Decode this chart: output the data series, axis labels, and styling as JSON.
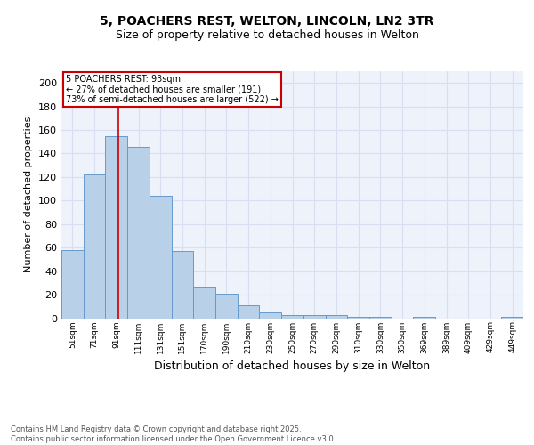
{
  "title_line1": "5, POACHERS REST, WELTON, LINCOLN, LN2 3TR",
  "title_line2": "Size of property relative to detached houses in Welton",
  "xlabel": "Distribution of detached houses by size in Welton",
  "ylabel": "Number of detached properties",
  "bar_labels": [
    "51sqm",
    "71sqm",
    "91sqm",
    "111sqm",
    "131sqm",
    "151sqm",
    "170sqm",
    "190sqm",
    "210sqm",
    "230sqm",
    "250sqm",
    "270sqm",
    "290sqm",
    "310sqm",
    "330sqm",
    "350sqm",
    "369sqm",
    "389sqm",
    "409sqm",
    "429sqm",
    "449sqm"
  ],
  "bar_values": [
    58,
    122,
    155,
    146,
    104,
    57,
    26,
    21,
    11,
    5,
    3,
    3,
    3,
    1,
    1,
    0,
    1,
    0,
    0,
    0,
    1
  ],
  "bar_color": "#b8d0e8",
  "bar_edge_color": "#6699cc",
  "background_color": "#eef2fb",
  "grid_color": "#d8dff0",
  "annotation_text": "5 POACHERS REST: 93sqm\n← 27% of detached houses are smaller (191)\n73% of semi-detached houses are larger (522) →",
  "annotation_box_color": "#ffffff",
  "annotation_box_edge": "#cc0000",
  "vline_color": "#cc0000",
  "footer_text": "Contains HM Land Registry data © Crown copyright and database right 2025.\nContains public sector information licensed under the Open Government Licence v3.0.",
  "ylim": [
    0,
    210
  ],
  "yticks": [
    0,
    20,
    40,
    60,
    80,
    100,
    120,
    140,
    160,
    180,
    200
  ],
  "title_fontsize": 10,
  "subtitle_fontsize": 9,
  "ylabel_fontsize": 8,
  "xlabel_fontsize": 9
}
